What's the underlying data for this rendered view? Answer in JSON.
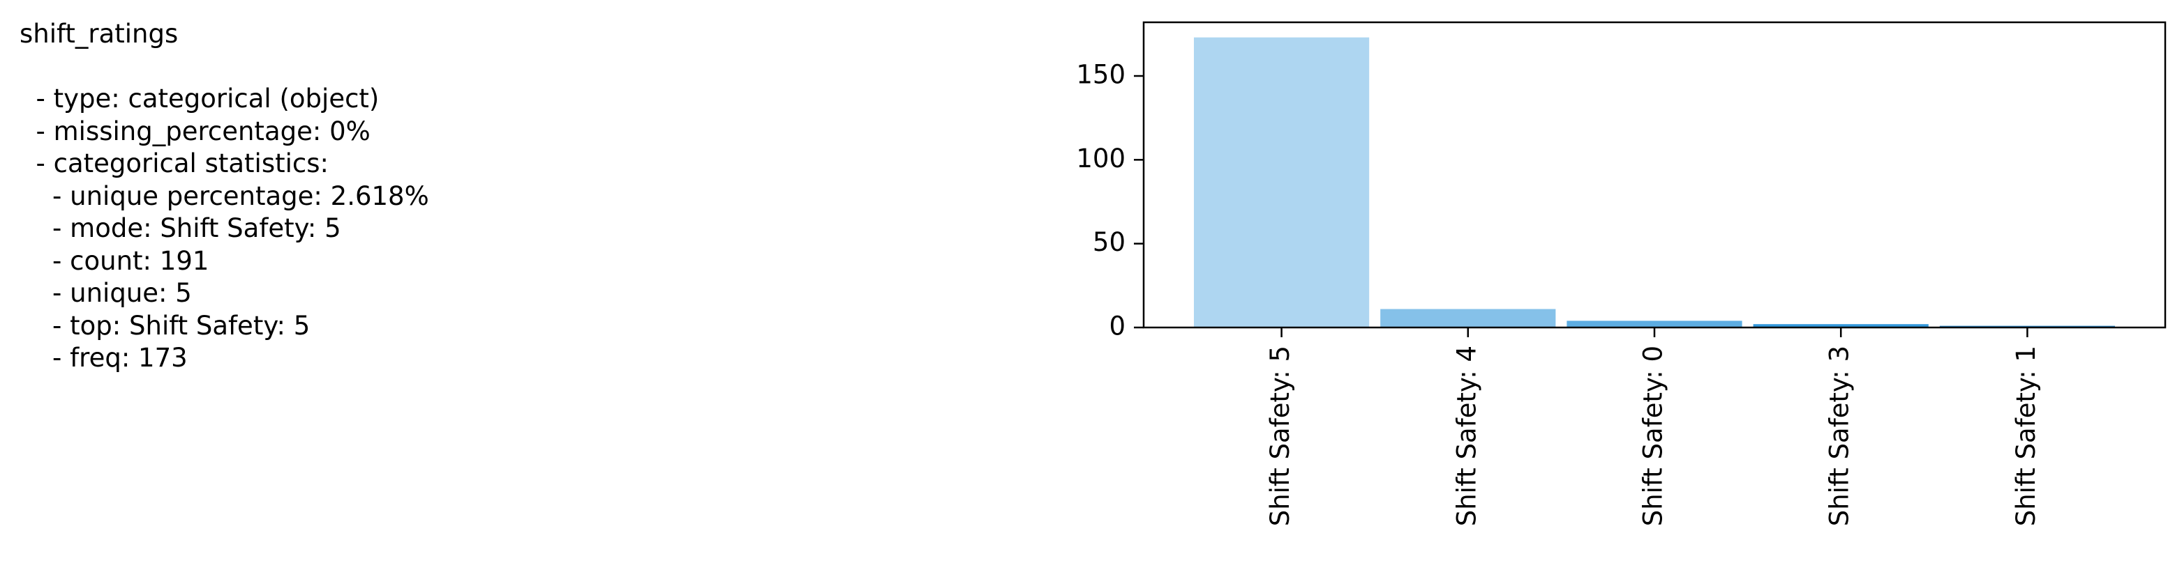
{
  "stats_panel": {
    "lines": [
      "shift_ratings",
      "",
      "  - type: categorical (object)",
      "  - missing_percentage: 0%",
      "  - categorical statistics:",
      "    - unique percentage: 2.618%",
      "    - mode: Shift Safety: 5",
      "    - count: 191",
      "    - unique: 5",
      "    - top: Shift Safety: 5",
      "    - freq: 173"
    ]
  },
  "chart_data": {
    "type": "bar",
    "categories": [
      "Shift Safety: 5",
      "Shift Safety: 4",
      "Shift Safety: 0",
      "Shift Safety: 3",
      "Shift Safety: 1"
    ],
    "values": [
      173,
      11,
      4,
      2,
      1
    ],
    "title": "",
    "xlabel": "",
    "ylabel": "",
    "ylim": [
      0,
      182
    ],
    "yticks": [
      0,
      50,
      100,
      150
    ],
    "grid": false,
    "bar_colors": [
      "#aed6f1",
      "#85c1e9",
      "#5dade2",
      "#3498db",
      "#2e86c1"
    ]
  }
}
